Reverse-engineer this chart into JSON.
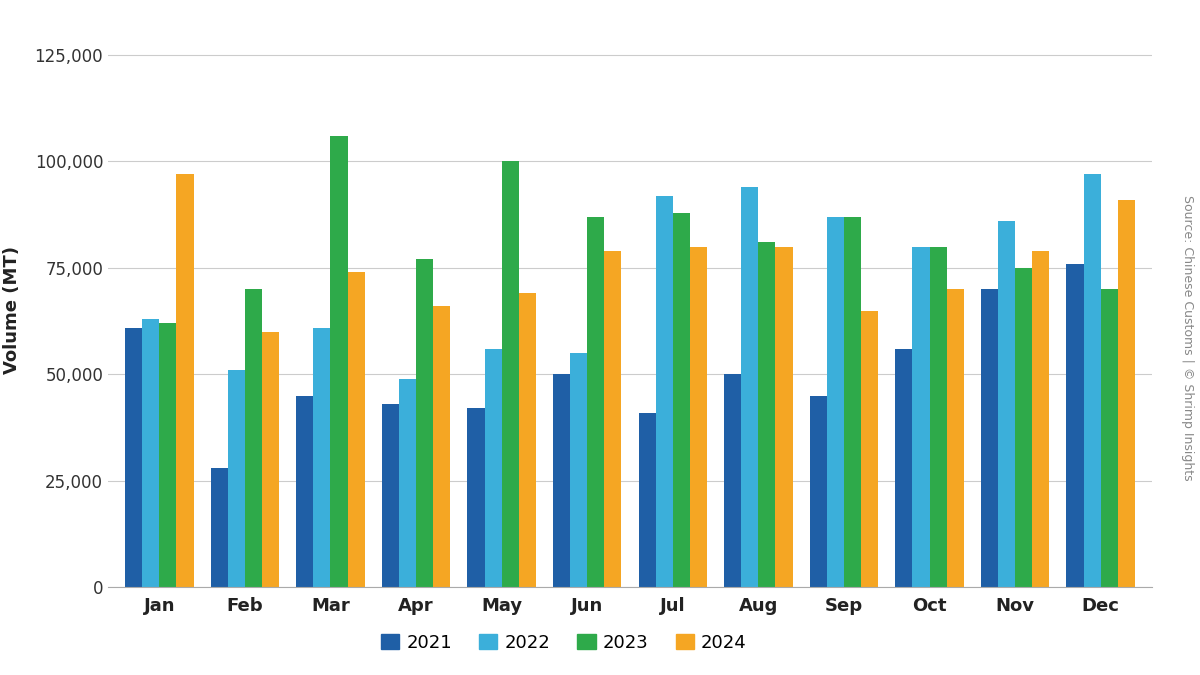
{
  "months": [
    "Jan",
    "Feb",
    "Mar",
    "Apr",
    "May",
    "Jun",
    "Jul",
    "Aug",
    "Sep",
    "Oct",
    "Nov",
    "Dec"
  ],
  "series": {
    "2021": [
      61000,
      28000,
      45000,
      43000,
      42000,
      50000,
      41000,
      50000,
      45000,
      56000,
      70000,
      76000
    ],
    "2022": [
      63000,
      51000,
      61000,
      49000,
      56000,
      55000,
      92000,
      94000,
      87000,
      80000,
      86000,
      97000
    ],
    "2023": [
      62000,
      70000,
      106000,
      77000,
      100000,
      87000,
      88000,
      81000,
      87000,
      80000,
      75000,
      70000
    ],
    "2024": [
      97000,
      60000,
      74000,
      66000,
      69000,
      79000,
      80000,
      80000,
      65000,
      70000,
      79000,
      91000
    ]
  },
  "colors": {
    "2021": "#1F5FA6",
    "2022": "#3BAFDA",
    "2023": "#2EAA4A",
    "2024": "#F5A623"
  },
  "ylabel": "Volume (MT)",
  "ylim": [
    0,
    130000
  ],
  "yticks": [
    0,
    25000,
    50000,
    75000,
    100000,
    125000
  ],
  "background_color": "#ffffff",
  "grid_color": "#cccccc",
  "source_text": "Source: Chinese Customs | © Shrimp Insights",
  "legend_labels": [
    "2021",
    "2022",
    "2023",
    "2024"
  ]
}
